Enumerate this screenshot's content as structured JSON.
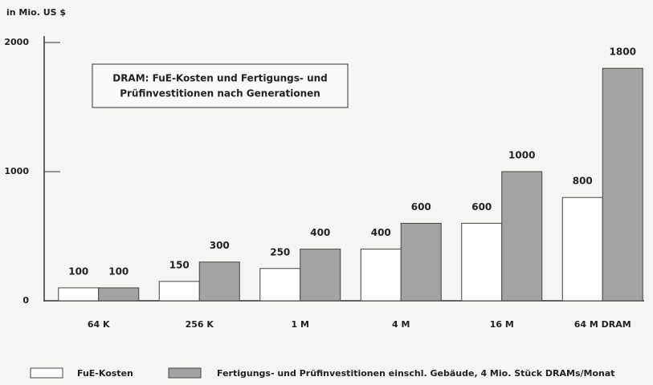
{
  "chart_data": {
    "type": "bar",
    "title": [
      "DRAM:  FuE-Kosten und Fertigungs-  und",
      "Prüfinvestitionen nach Generationen"
    ],
    "y_label": "in Mio. US $",
    "categories": [
      "64 K",
      "256 K",
      "1 M",
      "4 M",
      "16 M",
      "64 M DRAM"
    ],
    "series": [
      {
        "name": "FuE-Kosten",
        "color": "#ffffff",
        "values": [
          100,
          150,
          250,
          400,
          600,
          800
        ]
      },
      {
        "name": "Fertigungs- und Prüfinvestitionen einschl. Gebäude, 4 Mio. Stück DRAMs/Monat",
        "color": "#a3a3a3",
        "values": [
          100,
          300,
          400,
          600,
          1000,
          1800
        ]
      }
    ],
    "ylim": [
      0,
      2000
    ],
    "yticks": [
      0,
      1000,
      2000
    ],
    "grid": false
  }
}
